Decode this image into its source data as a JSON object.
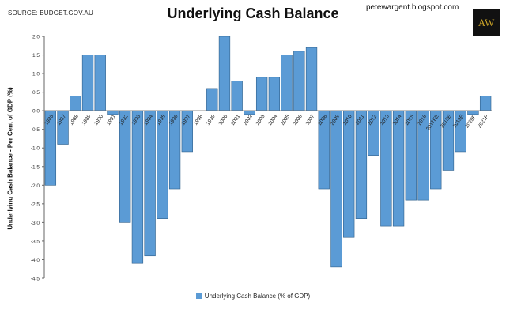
{
  "header": {
    "source": "SOURCE: BUDGET.GOV.AU",
    "blog": "petewargent.blogspot.com",
    "logo_text": "AW"
  },
  "chart_data": {
    "type": "bar",
    "title": "Underlying Cash Balance",
    "ylabel": "Underlying Cash Balance - Per Cent of GDP (%)",
    "xlabel": "",
    "ylim": [
      -4.5,
      2.0
    ],
    "ytick_step": 0.5,
    "yticks": [
      "2.0",
      "1.5",
      "1.0",
      "0.5",
      "0.0",
      "-0.5",
      "-1.0",
      "-1.5",
      "-2.0",
      "-2.5",
      "-3.0",
      "-3.5",
      "-4.0",
      "-4.5"
    ],
    "grid": false,
    "legend_position": "bottom",
    "bar_color": "#5b9bd5",
    "series": [
      {
        "name": "Underlying Cash Balance (% of GDP)",
        "values": [
          -2.0,
          -0.9,
          0.4,
          1.5,
          1.5,
          -0.1,
          -3.0,
          -4.1,
          -3.9,
          -2.9,
          -2.1,
          -1.1,
          0.0,
          0.6,
          2.0,
          0.8,
          -0.1,
          0.9,
          0.9,
          1.5,
          1.6,
          1.7,
          -2.1,
          -4.2,
          -3.4,
          -2.9,
          -1.2,
          -3.1,
          -3.1,
          -2.4,
          -2.4,
          -2.1,
          -1.6,
          -1.1,
          -0.1,
          0.4
        ]
      }
    ],
    "categories": [
      "1986",
      "1987",
      "1988",
      "1989",
      "1990",
      "1991",
      "1992",
      "1993",
      "1994",
      "1995",
      "1996",
      "1997",
      "1998",
      "1999",
      "2000",
      "2001",
      "2002",
      "2003",
      "2004",
      "2005",
      "2006",
      "2007",
      "2008",
      "2009",
      "2010",
      "2011",
      "2012",
      "2013",
      "2014",
      "2015",
      "2016",
      "2017FE",
      "2018E",
      "2019E",
      "2020P",
      "2021P"
    ]
  }
}
